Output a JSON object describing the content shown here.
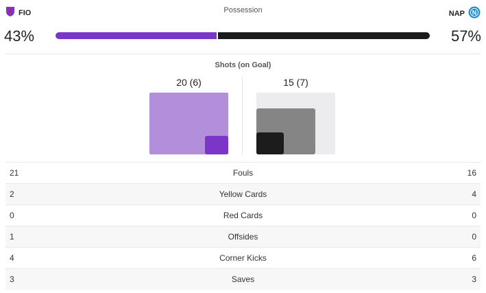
{
  "home": {
    "abbr": "FIO",
    "possession": "43%",
    "possession_value": 43,
    "shots": "20 (6)",
    "shots_total": 20,
    "shots_on": 6,
    "color": "#7b35c9"
  },
  "away": {
    "abbr": "NAP",
    "possession": "57%",
    "possession_value": 57,
    "shots": "15 (7)",
    "shots_total": 15,
    "shots_on": 7,
    "color": "#1a1a1a"
  },
  "possession_title": "Possession",
  "shots_title": "Shots (on Goal)",
  "stats": [
    {
      "label": "Fouls",
      "home": "21",
      "away": "16"
    },
    {
      "label": "Yellow Cards",
      "home": "2",
      "away": "4"
    },
    {
      "label": "Red Cards",
      "home": "0",
      "away": "0"
    },
    {
      "label": "Offsides",
      "home": "1",
      "away": "0"
    },
    {
      "label": "Corner Kicks",
      "home": "4",
      "away": "6"
    },
    {
      "label": "Saves",
      "home": "3",
      "away": "3"
    }
  ],
  "icons": {
    "home_logo": "fiorentina-logo-icon",
    "away_logo": "napoli-logo-icon"
  }
}
